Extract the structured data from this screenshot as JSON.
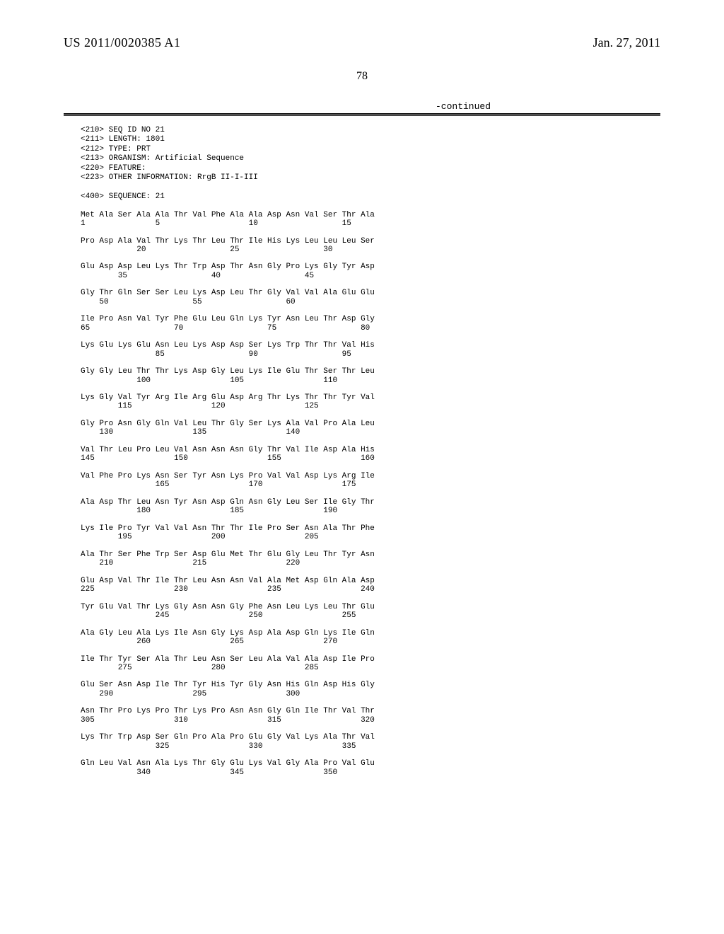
{
  "header": {
    "publication_number": "US 2011/0020385 A1",
    "publication_date": "Jan. 27, 2011"
  },
  "page_number": "78",
  "continued_label": "-continued",
  "meta": {
    "l210": "<210> SEQ ID NO 21",
    "l211": "<211> LENGTH: 1801",
    "l212": "<212> TYPE: PRT",
    "l213": "<213> ORGANISM: Artificial Sequence",
    "l220": "<220> FEATURE:",
    "l223": "<223> OTHER INFORMATION: RrgB II-I-III",
    "l400": "<400> SEQUENCE: 21"
  },
  "rows": [
    {
      "aa": "Met Ala Ser Ala Ala Thr Val Phe Ala Ala Asp Asn Val Ser Thr Ala",
      "nums": "1               5                   10                  15"
    },
    {
      "aa": "Pro Asp Ala Val Thr Lys Thr Leu Thr Ile His Lys Leu Leu Leu Ser",
      "nums": "            20                  25                  30"
    },
    {
      "aa": "Glu Asp Asp Leu Lys Thr Trp Asp Thr Asn Gly Pro Lys Gly Tyr Asp",
      "nums": "        35                  40                  45"
    },
    {
      "aa": "Gly Thr Gln Ser Ser Leu Lys Asp Leu Thr Gly Val Val Ala Glu Glu",
      "nums": "    50                  55                  60"
    },
    {
      "aa": "Ile Pro Asn Val Tyr Phe Glu Leu Gln Lys Tyr Asn Leu Thr Asp Gly",
      "nums": "65                  70                  75                  80"
    },
    {
      "aa": "Lys Glu Lys Glu Asn Leu Lys Asp Asp Ser Lys Trp Thr Thr Val His",
      "nums": "                85                  90                  95"
    },
    {
      "aa": "Gly Gly Leu Thr Thr Lys Asp Gly Leu Lys Ile Glu Thr Ser Thr Leu",
      "nums": "            100                 105                 110"
    },
    {
      "aa": "Lys Gly Val Tyr Arg Ile Arg Glu Asp Arg Thr Lys Thr Thr Tyr Val",
      "nums": "        115                 120                 125"
    },
    {
      "aa": "Gly Pro Asn Gly Gln Val Leu Thr Gly Ser Lys Ala Val Pro Ala Leu",
      "nums": "    130                 135                 140"
    },
    {
      "aa": "Val Thr Leu Pro Leu Val Asn Asn Asn Gly Thr Val Ile Asp Ala His",
      "nums": "145                 150                 155                 160"
    },
    {
      "aa": "Val Phe Pro Lys Asn Ser Tyr Asn Lys Pro Val Val Asp Lys Arg Ile",
      "nums": "                165                 170                 175"
    },
    {
      "aa": "Ala Asp Thr Leu Asn Tyr Asn Asp Gln Asn Gly Leu Ser Ile Gly Thr",
      "nums": "            180                 185                 190"
    },
    {
      "aa": "Lys Ile Pro Tyr Val Val Asn Thr Thr Ile Pro Ser Asn Ala Thr Phe",
      "nums": "        195                 200                 205"
    },
    {
      "aa": "Ala Thr Ser Phe Trp Ser Asp Glu Met Thr Glu Gly Leu Thr Tyr Asn",
      "nums": "    210                 215                 220"
    },
    {
      "aa": "Glu Asp Val Thr Ile Thr Leu Asn Asn Val Ala Met Asp Gln Ala Asp",
      "nums": "225                 230                 235                 240"
    },
    {
      "aa": "Tyr Glu Val Thr Lys Gly Asn Asn Gly Phe Asn Leu Lys Leu Thr Glu",
      "nums": "                245                 250                 255"
    },
    {
      "aa": "Ala Gly Leu Ala Lys Ile Asn Gly Lys Asp Ala Asp Gln Lys Ile Gln",
      "nums": "            260                 265                 270"
    },
    {
      "aa": "Ile Thr Tyr Ser Ala Thr Leu Asn Ser Leu Ala Val Ala Asp Ile Pro",
      "nums": "        275                 280                 285"
    },
    {
      "aa": "Glu Ser Asn Asp Ile Thr Tyr His Tyr Gly Asn His Gln Asp His Gly",
      "nums": "    290                 295                 300"
    },
    {
      "aa": "Asn Thr Pro Lys Pro Thr Lys Pro Asn Asn Gly Gln Ile Thr Val Thr",
      "nums": "305                 310                 315                 320"
    },
    {
      "aa": "Lys Thr Trp Asp Ser Gln Pro Ala Pro Glu Gly Val Lys Ala Thr Val",
      "nums": "                325                 330                 335"
    },
    {
      "aa": "Gln Leu Val Asn Ala Lys Thr Gly Glu Lys Val Gly Ala Pro Val Glu",
      "nums": "            340                 345                 350"
    }
  ]
}
